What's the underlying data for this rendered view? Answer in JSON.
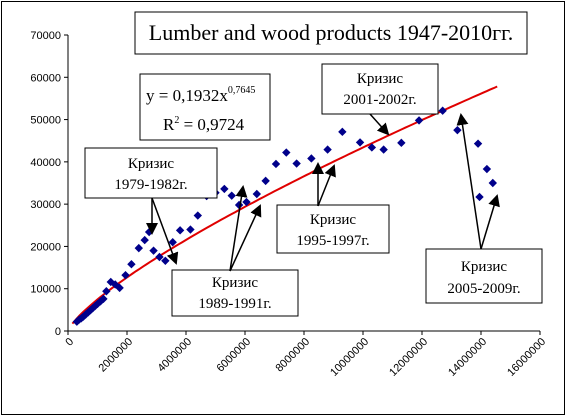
{
  "chart_data": {
    "type": "scatter",
    "title": "Lumber and wood products 1947-2010гг.",
    "xlim": [
      0,
      16000000
    ],
    "ylim": [
      0,
      70000
    ],
    "x_ticks": [
      0,
      2000000,
      4000000,
      6000000,
      8000000,
      10000000,
      12000000,
      14000000,
      16000000
    ],
    "x_tick_labels": [
      "0",
      "2000000",
      "4000000",
      "6000000",
      "8000000",
      "10000000",
      "12000000",
      "14000000",
      "16000000"
    ],
    "y_ticks": [
      0,
      10000,
      20000,
      30000,
      40000,
      50000,
      60000,
      70000
    ],
    "y_tick_labels": [
      "0",
      "10000",
      "20000",
      "30000",
      "40000",
      "50000",
      "60000",
      "70000"
    ],
    "grid": false,
    "marker_color": "#00008b",
    "trend_color": "#e00000",
    "points": [
      {
        "x": 300000,
        "y": 2200
      },
      {
        "x": 380000,
        "y": 2700
      },
      {
        "x": 450000,
        "y": 3000
      },
      {
        "x": 520000,
        "y": 3400
      },
      {
        "x": 600000,
        "y": 3900
      },
      {
        "x": 680000,
        "y": 4400
      },
      {
        "x": 760000,
        "y": 4900
      },
      {
        "x": 840000,
        "y": 5400
      },
      {
        "x": 920000,
        "y": 5900
      },
      {
        "x": 1000000,
        "y": 6400
      },
      {
        "x": 1100000,
        "y": 7000
      },
      {
        "x": 1200000,
        "y": 7600
      },
      {
        "x": 1300000,
        "y": 9400
      },
      {
        "x": 1450000,
        "y": 11600
      },
      {
        "x": 1600000,
        "y": 11000
      },
      {
        "x": 1750000,
        "y": 10200
      },
      {
        "x": 1950000,
        "y": 13200
      },
      {
        "x": 2150000,
        "y": 15800
      },
      {
        "x": 2400000,
        "y": 19600
      },
      {
        "x": 2600000,
        "y": 21500
      },
      {
        "x": 2750000,
        "y": 23400
      },
      {
        "x": 2900000,
        "y": 19000
      },
      {
        "x": 3100000,
        "y": 17500
      },
      {
        "x": 3300000,
        "y": 16600
      },
      {
        "x": 3550000,
        "y": 21000
      },
      {
        "x": 3800000,
        "y": 23800
      },
      {
        "x": 4150000,
        "y": 24000
      },
      {
        "x": 4400000,
        "y": 27300
      },
      {
        "x": 4700000,
        "y": 31900
      },
      {
        "x": 5000000,
        "y": 32700
      },
      {
        "x": 5300000,
        "y": 33600
      },
      {
        "x": 5550000,
        "y": 32000
      },
      {
        "x": 5800000,
        "y": 29800
      },
      {
        "x": 6050000,
        "y": 30500
      },
      {
        "x": 6400000,
        "y": 32400
      },
      {
        "x": 6700000,
        "y": 35500
      },
      {
        "x": 7050000,
        "y": 39500
      },
      {
        "x": 7400000,
        "y": 42200
      },
      {
        "x": 7750000,
        "y": 39600
      },
      {
        "x": 8250000,
        "y": 40800
      },
      {
        "x": 8800000,
        "y": 42900
      },
      {
        "x": 9300000,
        "y": 47100
      },
      {
        "x": 9900000,
        "y": 44600
      },
      {
        "x": 10300000,
        "y": 43400
      },
      {
        "x": 10700000,
        "y": 42900
      },
      {
        "x": 11300000,
        "y": 44500
      },
      {
        "x": 11900000,
        "y": 49800
      },
      {
        "x": 12700000,
        "y": 52100
      },
      {
        "x": 13200000,
        "y": 47500
      },
      {
        "x": 13900000,
        "y": 44300
      },
      {
        "x": 14200000,
        "y": 38300
      },
      {
        "x": 14400000,
        "y": 35000
      },
      {
        "x": 13950000,
        "y": 31700
      }
    ],
    "trend": {
      "coefficient": 0.1932,
      "exponent": 0.7645,
      "x_range": [
        150000,
        14550000
      ],
      "equation_prefix": "y = 0,1932x",
      "equation_exponent": "0,7645",
      "r2_label": "R",
      "r2_sup": "2",
      "r2_value": " = 0,9724"
    },
    "annotations": [
      {
        "id": "crisis-1979",
        "lines": [
          "Кризис",
          "1979-1982г."
        ]
      },
      {
        "id": "crisis-1989",
        "lines": [
          "Кризис",
          "1989-1991г."
        ]
      },
      {
        "id": "crisis-1995",
        "lines": [
          "Кризис",
          "1995-1997г."
        ]
      },
      {
        "id": "crisis-2001",
        "lines": [
          "Кризис",
          "2001-2002г."
        ]
      },
      {
        "id": "crisis-2005",
        "lines": [
          "Кризис",
          "2005-2009г."
        ]
      }
    ]
  }
}
